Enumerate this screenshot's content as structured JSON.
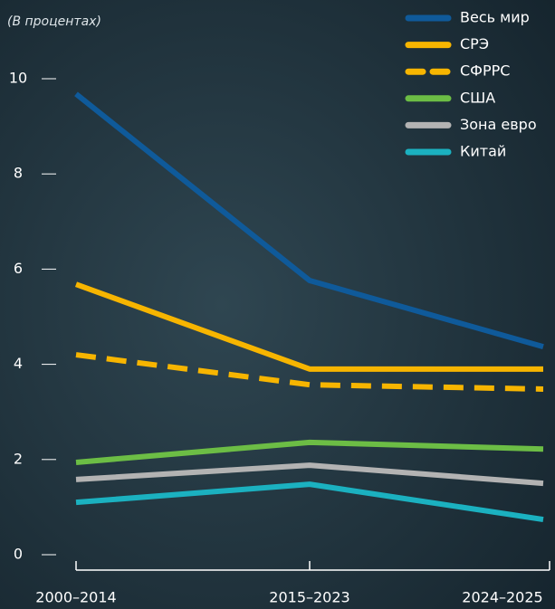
{
  "chart_data": {
    "type": "line",
    "subtitle": "(В процентах)",
    "categories": [
      "2000–2014",
      "2015–2023",
      "2024–2025"
    ],
    "series": [
      {
        "name": "Весь мир",
        "color": "#0f5a9a",
        "values": [
          9.68,
          5.76,
          4.37
        ]
      },
      {
        "name": "СРЭ",
        "color": "#f7b500",
        "values": [
          5.68,
          3.9,
          3.9
        ]
      },
      {
        "name": "СФРРС",
        "color": "#f7b500",
        "dashed": true,
        "values": [
          4.2,
          3.57,
          3.48
        ]
      },
      {
        "name": "США",
        "color": "#6cbd45",
        "values": [
          1.94,
          2.36,
          2.22
        ]
      },
      {
        "name": "Зона евро",
        "color": "#b3b3b3",
        "values": [
          1.58,
          1.88,
          1.5
        ]
      },
      {
        "name": "Китай",
        "color": "#1bb1c0",
        "values": [
          1.1,
          1.48,
          0.74
        ]
      }
    ],
    "ylim": [
      0,
      10
    ],
    "yticks": [
      0,
      2,
      4,
      6,
      8,
      10
    ],
    "legend": "top-right"
  }
}
